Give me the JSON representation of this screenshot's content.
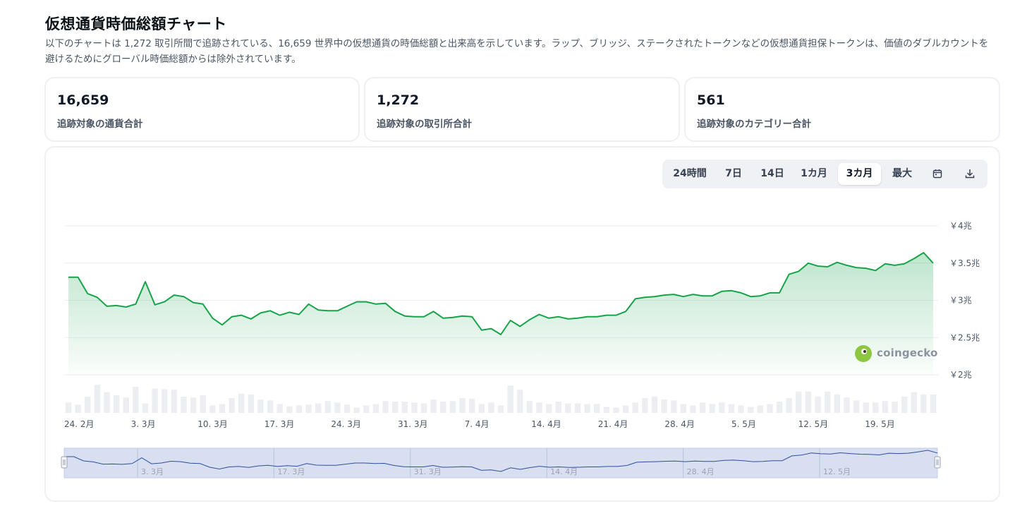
{
  "page": {
    "title": "仮想通貨時価総額チャート",
    "description": "以下のチャートは 1,272 取引所間で追跡されている、16,659 世界中の仮想通貨の時価総額と出来高を示しています。ラップ、ブリッジ、ステークされたトークンなどの仮想通貨担保トークンは、価値のダブルカウントを避けるためにグローバル時価総額からは除外されています。"
  },
  "stats": [
    {
      "value": "16,659",
      "label": "追跡対象の通貨合計"
    },
    {
      "value": "1,272",
      "label": "追跡対象の取引所合計"
    },
    {
      "value": "561",
      "label": "追跡対象のカテゴリー合計"
    }
  ],
  "range": {
    "options": [
      "24時間",
      "7日",
      "14日",
      "1カ月",
      "3カ月",
      "最大"
    ],
    "selected": "3カ月",
    "calendar_icon": "calendar-icon",
    "download_icon": "download-icon"
  },
  "watermark": "coingecko",
  "chart_data": {
    "type": "area",
    "y_ticks": [
      "￥4兆",
      "￥3.5兆",
      "￥3兆",
      "￥2.5兆",
      "￥2兆"
    ],
    "y_tick_values": [
      4.0,
      3.5,
      3.0,
      2.5,
      2.0
    ],
    "ylim": [
      2.0,
      4.0
    ],
    "x_ticks": [
      "24. 2月",
      "3. 3月",
      "10. 3月",
      "17. 3月",
      "24. 3月",
      "31. 3月",
      "7. 4月",
      "14. 4月",
      "21. 4月",
      "28. 4月",
      "5. 5月",
      "12. 5月",
      "19. 5月"
    ],
    "navigator_ticks": [
      "3. 3月",
      "17. 3月",
      "31. 3月",
      "14. 4月",
      "28. 4月",
      "12. 5月"
    ],
    "grid": true,
    "line_color": "#16a34a",
    "fill_color": "#16a34a",
    "volume_color": "#eceef1",
    "navigator_line_color": "#2f4f9b",
    "navigator_fill_color": "#d8dff0",
    "market_cap_trillion_yen": [
      3.31,
      3.31,
      3.09,
      3.04,
      2.92,
      2.93,
      2.91,
      2.95,
      3.25,
      2.94,
      2.98,
      3.07,
      3.05,
      2.97,
      2.95,
      2.76,
      2.67,
      2.78,
      2.8,
      2.75,
      2.83,
      2.86,
      2.8,
      2.84,
      2.81,
      2.95,
      2.87,
      2.86,
      2.86,
      2.92,
      2.98,
      2.98,
      2.95,
      2.96,
      2.85,
      2.79,
      2.78,
      2.78,
      2.85,
      2.76,
      2.77,
      2.79,
      2.78,
      2.6,
      2.62,
      2.54,
      2.73,
      2.65,
      2.74,
      2.81,
      2.76,
      2.78,
      2.75,
      2.76,
      2.78,
      2.78,
      2.8,
      2.8,
      2.85,
      3.02,
      3.04,
      3.05,
      3.07,
      3.08,
      3.05,
      3.08,
      3.06,
      3.06,
      3.12,
      3.13,
      3.1,
      3.05,
      3.06,
      3.1,
      3.1,
      3.35,
      3.39,
      3.5,
      3.46,
      3.45,
      3.51,
      3.47,
      3.44,
      3.43,
      3.4,
      3.49,
      3.47,
      3.49,
      3.56,
      3.64,
      3.5
    ],
    "volume_relative": [
      0.35,
      0.28,
      0.55,
      0.95,
      0.7,
      0.6,
      0.52,
      0.88,
      0.32,
      0.82,
      0.8,
      0.78,
      0.55,
      0.52,
      0.6,
      0.25,
      0.3,
      0.5,
      0.65,
      0.62,
      0.45,
      0.42,
      0.3,
      0.22,
      0.25,
      0.28,
      0.32,
      0.4,
      0.35,
      0.28,
      0.18,
      0.25,
      0.3,
      0.4,
      0.38,
      0.38,
      0.35,
      0.32,
      0.45,
      0.38,
      0.4,
      0.5,
      0.48,
      0.3,
      0.35,
      0.25,
      0.92,
      0.78,
      0.4,
      0.35,
      0.3,
      0.38,
      0.32,
      0.32,
      0.3,
      0.3,
      0.2,
      0.18,
      0.25,
      0.35,
      0.5,
      0.55,
      0.45,
      0.42,
      0.3,
      0.25,
      0.35,
      0.3,
      0.35,
      0.3,
      0.25,
      0.2,
      0.25,
      0.3,
      0.38,
      0.5,
      0.72,
      0.72,
      0.55,
      0.72,
      0.62,
      0.52,
      0.42,
      0.35,
      0.35,
      0.4,
      0.38,
      0.55,
      0.7,
      0.62,
      0.62
    ]
  }
}
